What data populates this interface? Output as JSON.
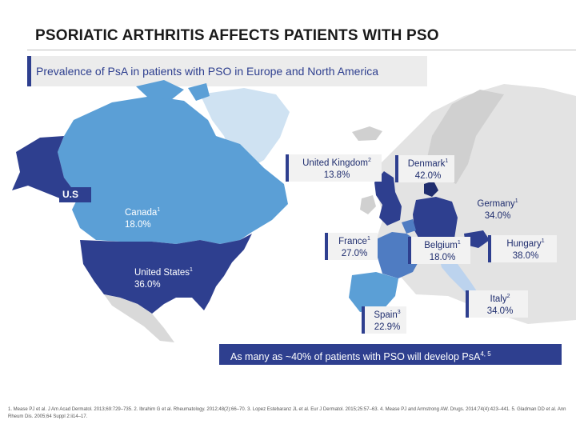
{
  "title": "PSORIATIC ARTHRITIS AFFECTS PATIENTS WITH PSO",
  "subtitle": "Prevalence of PsA in patients with PSO in Europe and North America",
  "us_tag": "U.S",
  "colors": {
    "accent": "#2e3f8f",
    "usa": "#2e3f8f",
    "canada": "#5b9fd6",
    "greenland": "#cfe2f2",
    "europe_other": "#d9d9d9"
  },
  "countries": {
    "uk": {
      "name": "United Kingdom",
      "ref": "2",
      "value": "13.8%"
    },
    "denmark": {
      "name": "Denmark",
      "ref": "1",
      "value": "42.0%"
    },
    "germany": {
      "name": "Germany",
      "ref": "1",
      "value": "34.0%"
    },
    "canada": {
      "name": "Canada",
      "ref": "1",
      "value": "18.0%"
    },
    "france": {
      "name": "France",
      "ref": "1",
      "value": "27.0%"
    },
    "belgium": {
      "name": "Belgium",
      "ref": "1",
      "value": "18.0%"
    },
    "hungary": {
      "name": "Hungary",
      "ref": "1",
      "value": "38.0%"
    },
    "usa": {
      "name": "United States",
      "ref": "1",
      "value": "36.0%"
    },
    "italy": {
      "name": "Italy",
      "ref": "2",
      "value": "34.0%"
    },
    "spain": {
      "name": "Spain",
      "ref": "3",
      "value": "22.9%"
    }
  },
  "callout": {
    "text": "As many as ~40% of patients with PSO will develop PsA",
    "refs": "4, 5"
  },
  "references": "1. Mease PJ et al. J Am Acad Dermatol. 2013;69:729–735. 2. Ibrahim G et al. Rheumatology. 2012;48(2):66–70. 3. Lopez Estebaranz JL et al. Eur J Dermatol. 2015;25:57–63. 4. Mease PJ and Armstrong AW. Drugs. 2014;74(4):423–441. 5. Gladman DD et al. Ann Rheum Dis. 2005;64 Suppl 2:ii14–17."
}
